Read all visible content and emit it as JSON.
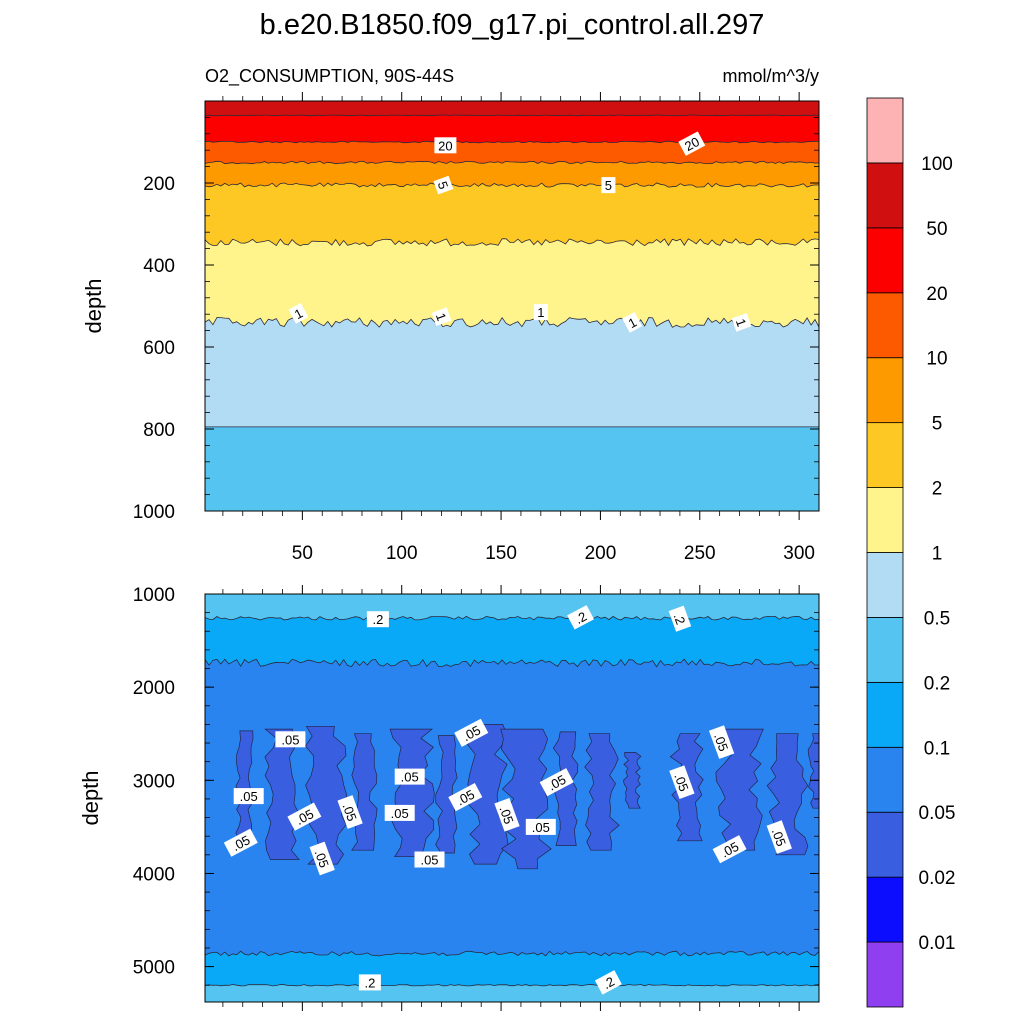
{
  "chart_data": {
    "type": "filled-contour",
    "title": "b.e20.B1850.f09_g17.pi_control.all.297",
    "subtitle_left": "O2_CONSUMPTION, 90S-44S",
    "subtitle_right": "mmol/m^3/y",
    "x_range": [
      1,
      310
    ],
    "x_ticks": [
      50,
      100,
      150,
      200,
      250,
      300
    ],
    "colorbar": {
      "levels": [
        0.01,
        0.02,
        0.05,
        0.1,
        0.2,
        0.5,
        1,
        2,
        5,
        10,
        20,
        50,
        100
      ],
      "level_labels": [
        "0.01",
        "0.02",
        "0.05",
        "0.1",
        "0.2",
        "0.5",
        "1",
        "2",
        "5",
        "10",
        "20",
        "50",
        "100"
      ],
      "colors": [
        "#8f3ff0",
        "#0c0cfe",
        "#3a5ee0",
        "#2a84f0",
        "#0aa9f8",
        "#56c4f0",
        "#b2dcf4",
        "#fff48c",
        "#fdc824",
        "#fd9a00",
        "#fd5a00",
        "#fc0000",
        "#d01010",
        "#fdb2b4"
      ]
    },
    "panels": [
      {
        "name": "upper",
        "ylabel": "depth",
        "ylim": [
          1000,
          0
        ],
        "y_ticks": [
          200,
          400,
          600,
          800,
          1000
        ],
        "layers": [
          {
            "from": 0,
            "to": 35,
            "band": 12,
            "noise": 0
          },
          {
            "from": 35,
            "to": 100,
            "band": 11,
            "noise": 1
          },
          {
            "from": 100,
            "to": 150,
            "band": 10,
            "noise": 2
          },
          {
            "from": 150,
            "to": 205,
            "band": 9,
            "noise": 3
          },
          {
            "from": 205,
            "to": 345,
            "band": 8,
            "noise": 5
          },
          {
            "from": 345,
            "to": 540,
            "band": 7,
            "noise": 9
          },
          {
            "from": 540,
            "to": 795,
            "band": 6,
            "noise": 12
          },
          {
            "from": 795,
            "to": 1000,
            "band": 5,
            "noise": 0
          }
        ],
        "contour_labels": [
          {
            "text": "20",
            "x": 122,
            "depth": 108
          },
          {
            "text": "20",
            "x": 246,
            "depth": 104
          },
          {
            "text": "5",
            "x": 121,
            "depth": 205
          },
          {
            "text": "5",
            "x": 204,
            "depth": 205
          },
          {
            "text": "1",
            "x": 48,
            "depth": 518
          },
          {
            "text": "1",
            "x": 120,
            "depth": 526
          },
          {
            "text": "1",
            "x": 170,
            "depth": 515
          },
          {
            "text": "1",
            "x": 216,
            "depth": 540
          },
          {
            "text": "1",
            "x": 271,
            "depth": 540
          }
        ]
      },
      {
        "name": "lower",
        "ylabel": "depth",
        "ylim": [
          5380,
          1000
        ],
        "y_ticks": [
          1000,
          2000,
          3000,
          4000,
          5000
        ],
        "layers": [
          {
            "from": 1000,
            "to": 1260,
            "band": 5,
            "noise": 12
          },
          {
            "from": 1260,
            "to": 1740,
            "band": 4,
            "noise": 20
          },
          {
            "from": 1740,
            "to": 4860,
            "band": 3,
            "noise": 40
          },
          {
            "from": 4860,
            "to": 5200,
            "band": 4,
            "noise": 25
          },
          {
            "from": 5200,
            "to": 5380,
            "band": 5,
            "noise": 8
          }
        ],
        "deep_patches": [
          {
            "x": 18,
            "w": 6,
            "top": 2470,
            "bot": 3650
          },
          {
            "x": 34,
            "w": 12,
            "top": 2450,
            "bot": 3850
          },
          {
            "x": 55,
            "w": 14,
            "top": 2420,
            "bot": 3900
          },
          {
            "x": 76,
            "w": 10,
            "top": 2500,
            "bot": 3750
          },
          {
            "x": 97,
            "w": 16,
            "top": 2450,
            "bot": 3820
          },
          {
            "x": 119,
            "w": 8,
            "top": 2520,
            "bot": 3780
          },
          {
            "x": 136,
            "w": 14,
            "top": 2400,
            "bot": 3900
          },
          {
            "x": 154,
            "w": 18,
            "top": 2450,
            "bot": 3950
          },
          {
            "x": 178,
            "w": 9,
            "top": 2480,
            "bot": 3700
          },
          {
            "x": 195,
            "w": 12,
            "top": 2500,
            "bot": 3750
          },
          {
            "x": 213,
            "w": 6,
            "top": 2700,
            "bot": 3300
          },
          {
            "x": 238,
            "w": 12,
            "top": 2500,
            "bot": 3650
          },
          {
            "x": 262,
            "w": 16,
            "top": 2450,
            "bot": 3750
          },
          {
            "x": 287,
            "w": 14,
            "top": 2500,
            "bot": 3800
          },
          {
            "x": 306,
            "w": 6,
            "top": 2500,
            "bot": 3300
          }
        ],
        "contour_labels": [
          {
            "text": ".2",
            "x": 88,
            "depth": 1270
          },
          {
            "text": ".2",
            "x": 190,
            "depth": 1250
          },
          {
            "text": ".2",
            "x": 240,
            "depth": 1265
          },
          {
            "text": ".05",
            "x": 44,
            "depth": 2560
          },
          {
            "text": ".05",
            "x": 135,
            "depth": 2490
          },
          {
            "text": ".05",
            "x": 261,
            "depth": 2590
          },
          {
            "text": ".05",
            "x": 104,
            "depth": 2960
          },
          {
            "text": ".05",
            "x": 178,
            "depth": 3020
          },
          {
            "text": ".05",
            "x": 241,
            "depth": 3020
          },
          {
            "text": ".05",
            "x": 23,
            "depth": 3170
          },
          {
            "text": ".05",
            "x": 51,
            "depth": 3390
          },
          {
            "text": ".05",
            "x": 74,
            "depth": 3340
          },
          {
            "text": ".05",
            "x": 99,
            "depth": 3350
          },
          {
            "text": ".05",
            "x": 132,
            "depth": 3180
          },
          {
            "text": ".05",
            "x": 153,
            "depth": 3370
          },
          {
            "text": ".05",
            "x": 170,
            "depth": 3500
          },
          {
            "text": ".05",
            "x": 19,
            "depth": 3670
          },
          {
            "text": ".05",
            "x": 60,
            "depth": 3840
          },
          {
            "text": ".05",
            "x": 114,
            "depth": 3850
          },
          {
            "text": ".05",
            "x": 265,
            "depth": 3740
          },
          {
            "text": ".05",
            "x": 290,
            "depth": 3610
          },
          {
            "text": ".2",
            "x": 84,
            "depth": 5170
          },
          {
            "text": ".2",
            "x": 204,
            "depth": 5170
          }
        ]
      }
    ]
  }
}
